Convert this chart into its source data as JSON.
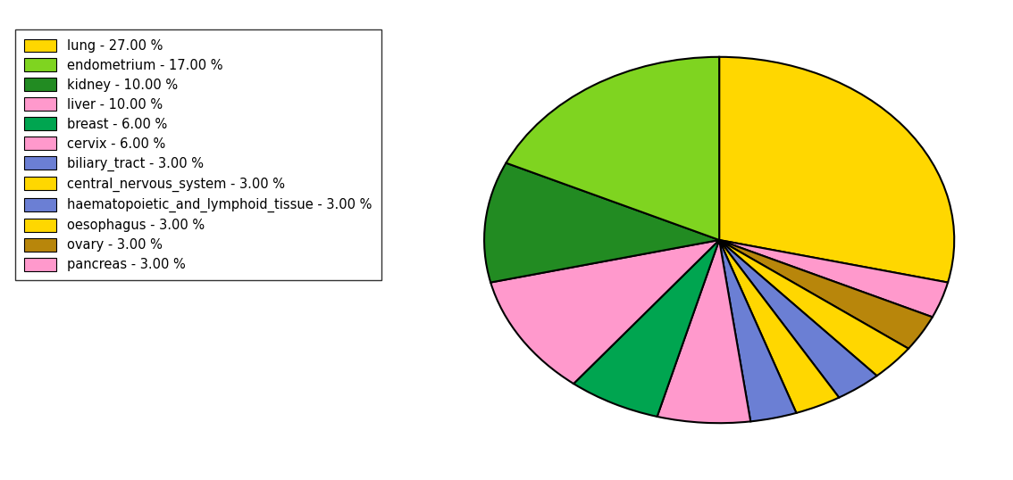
{
  "labels": [
    "lung",
    "pancreas",
    "ovary",
    "oesophagus",
    "haematopoietic_and_lymphoid_tissue",
    "central_nervous_system",
    "biliary_tract",
    "cervix",
    "breast",
    "liver",
    "kidney",
    "endometrium"
  ],
  "values": [
    27,
    3,
    3,
    3,
    3,
    3,
    3,
    6,
    6,
    10,
    10,
    17
  ],
  "colors": [
    "#FFD700",
    "#FF99CC",
    "#B8860B",
    "#FFD700",
    "#6B7FD4",
    "#FFD700",
    "#6B7FD4",
    "#FF99CC",
    "#00A550",
    "#FF99CC",
    "#228B22",
    "#7FD420"
  ],
  "legend_labels": [
    "lung - 27.00 %",
    "endometrium - 17.00 %",
    "kidney - 10.00 %",
    "liver - 10.00 %",
    "breast - 6.00 %",
    "cervix - 6.00 %",
    "biliary_tract - 3.00 %",
    "central_nervous_system - 3.00 %",
    "haematopoietic_and_lymphoid_tissue - 3.00 %",
    "oesophagus - 3.00 %",
    "ovary - 3.00 %",
    "pancreas - 3.00 %"
  ],
  "legend_colors": [
    "#FFD700",
    "#7FD420",
    "#228B22",
    "#FF99CC",
    "#00A550",
    "#FF99CC",
    "#6B7FD4",
    "#FFD700",
    "#6B7FD4",
    "#FFD700",
    "#B8860B",
    "#FF99CC"
  ],
  "startangle": 90,
  "figsize": [
    11.34,
    5.38
  ],
  "dpi": 100
}
